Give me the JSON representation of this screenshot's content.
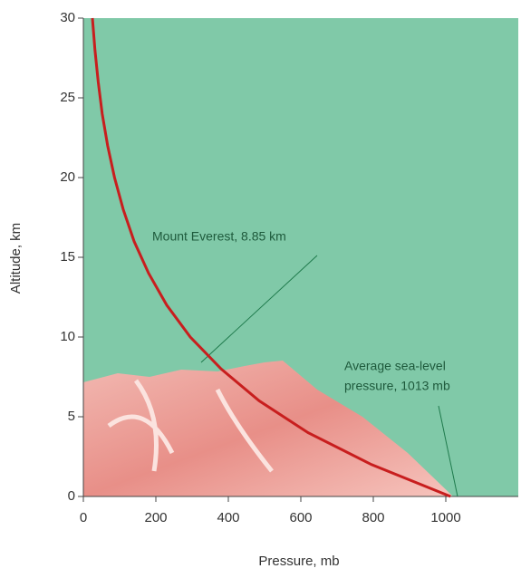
{
  "chart_data": {
    "type": "line",
    "x_label": "Pressure, mb",
    "y_label": "Altitude, km",
    "x": [
      1013,
      795,
      620,
      485,
      380,
      295,
      230,
      180,
      140,
      110,
      86,
      67,
      52,
      41,
      32,
      25
    ],
    "series": [
      {
        "color": "#c81e1e",
        "values": [
          0,
          2,
          4,
          6,
          8,
          10,
          12,
          14,
          16,
          18,
          20,
          22,
          24,
          26,
          28,
          30
        ]
      }
    ],
    "xlim": [
      0,
      1200
    ],
    "xticks": [
      0,
      200,
      400,
      600,
      800,
      1000
    ],
    "ylim": [
      0,
      30
    ],
    "yticks": [
      0,
      5,
      10,
      15,
      20,
      25,
      30
    ],
    "background": "#80c9a8",
    "annotations": [
      {
        "lines": [
          "Mount Everest, 8.85 km"
        ]
      },
      {
        "lines": [
          "Average sea-level",
          "pressure, 1013 mb"
        ]
      }
    ]
  }
}
